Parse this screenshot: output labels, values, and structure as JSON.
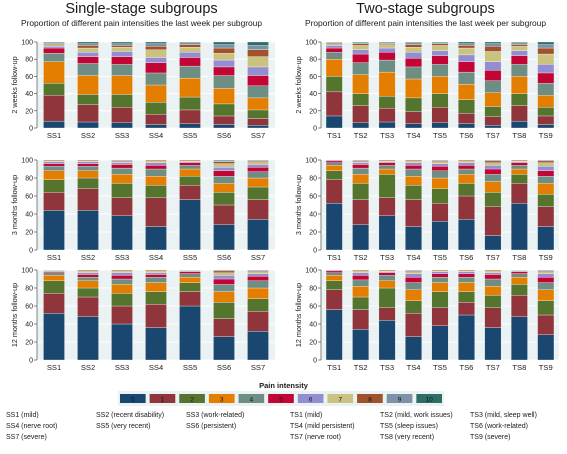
{
  "columns": [
    {
      "title": "Single-stage subgroups",
      "subtitle": "Proportion of different pain intensities the last week per subgroup"
    },
    {
      "title": "Two-stage subgroups",
      "subtitle": "Proportion of different pain intensities the last week per subgroup"
    }
  ],
  "legend": {
    "title": "Pain intensity",
    "items": [
      {
        "label": "0",
        "color": "#1a476f"
      },
      {
        "label": "1",
        "color": "#90353b"
      },
      {
        "label": "2",
        "color": "#55752f"
      },
      {
        "label": "3",
        "color": "#e37e00"
      },
      {
        "label": "4",
        "color": "#6e8e84"
      },
      {
        "label": "5",
        "color": "#c10534"
      },
      {
        "label": "6",
        "color": "#938dd2"
      },
      {
        "label": "7",
        "color": "#cac27e"
      },
      {
        "label": "8",
        "color": "#a0522d"
      },
      {
        "label": "9",
        "color": "#7b92a8"
      },
      {
        "label": "10",
        "color": "#2d6d66"
      }
    ]
  },
  "subgroup_legend": [
    "SS1 (mild)",
    "SS2 (recent disability)",
    "SS3 (work-related)",
    "TS1 (mild)",
    "TS2 (mild, work issues)",
    "TS3 (mild, sleep well)",
    "SS4 (nerve root)",
    "SS5 (very recent)",
    "SS6 (persistent)",
    "TS4 (mild persistent)",
    "TS5 (sleep issues)",
    "TS6 (work-related)",
    "SS7 (severe)",
    "TS7 (nerve root)",
    "TS8 (very recent)",
    "TS9 (severe)"
  ],
  "chart_data": [
    {
      "type": "bar",
      "stacked": true,
      "ylabel": "2 weeks follow-up",
      "ylim": [
        0,
        100
      ],
      "yticks": [
        "0",
        "20",
        "40",
        "60",
        "80",
        "100"
      ],
      "grid": true,
      "categories": [
        "SS1",
        "SS2",
        "SS3",
        "SS4",
        "SS5",
        "SS6",
        "SS7"
      ],
      "values": [
        [
          8,
          30,
          14,
          25,
          10,
          6,
          2,
          2,
          1,
          1,
          1
        ],
        [
          7,
          20,
          12,
          22,
          14,
          8,
          5,
          5,
          3,
          2,
          2
        ],
        [
          6,
          18,
          15,
          22,
          13,
          9,
          6,
          5,
          2,
          2,
          2
        ],
        [
          4,
          12,
          14,
          20,
          14,
          12,
          6,
          9,
          4,
          3,
          2
        ],
        [
          5,
          16,
          15,
          22,
          14,
          10,
          6,
          6,
          3,
          2,
          1
        ],
        [
          4,
          10,
          14,
          18,
          15,
          10,
          8,
          8,
          6,
          4,
          3
        ],
        [
          3,
          8,
          10,
          14,
          14,
          12,
          10,
          12,
          8,
          5,
          4
        ]
      ]
    },
    {
      "type": "bar",
      "stacked": true,
      "ylabel": "2 weeks follow-up",
      "ylim": [
        0,
        100
      ],
      "yticks": [
        "0",
        "20",
        "40",
        "60",
        "80",
        "100"
      ],
      "grid": true,
      "categories": [
        "TS1",
        "TS2",
        "TS3",
        "TS4",
        "TS5",
        "TS6",
        "TS7",
        "TS8",
        "TS9"
      ],
      "values": [
        [
          14,
          28,
          18,
          20,
          8,
          5,
          3,
          2,
          1,
          1,
          0
        ],
        [
          6,
          20,
          14,
          22,
          14,
          10,
          5,
          5,
          2,
          1,
          1
        ],
        [
          7,
          16,
          14,
          28,
          14,
          9,
          5,
          4,
          1,
          1,
          1
        ],
        [
          5,
          14,
          16,
          22,
          14,
          10,
          7,
          6,
          3,
          2,
          1
        ],
        [
          6,
          18,
          16,
          20,
          14,
          10,
          6,
          6,
          2,
          1,
          1
        ],
        [
          5,
          12,
          16,
          18,
          14,
          12,
          8,
          8,
          3,
          2,
          2
        ],
        [
          3,
          10,
          12,
          16,
          14,
          12,
          10,
          12,
          6,
          3,
          2
        ],
        [
          8,
          18,
          14,
          20,
          14,
          10,
          6,
          5,
          2,
          2,
          1
        ],
        [
          4,
          10,
          10,
          14,
          14,
          12,
          10,
          12,
          7,
          4,
          3
        ]
      ]
    },
    {
      "type": "bar",
      "stacked": true,
      "ylabel": "3 months follow-up",
      "ylim": [
        0,
        100
      ],
      "yticks": [
        "0",
        "20",
        "40",
        "60",
        "80",
        "100"
      ],
      "grid": true,
      "categories": [
        "SS1",
        "SS2",
        "SS3",
        "SS4",
        "SS5",
        "SS6",
        "SS7"
      ],
      "values": [
        [
          44,
          20,
          14,
          10,
          5,
          3,
          2,
          1,
          1,
          0,
          0
        ],
        [
          44,
          24,
          12,
          8,
          5,
          3,
          2,
          1,
          1,
          0,
          0
        ],
        [
          38,
          20,
          16,
          10,
          7,
          4,
          2,
          1,
          1,
          1,
          0
        ],
        [
          26,
          32,
          14,
          10,
          8,
          4,
          3,
          2,
          1,
          0,
          0
        ],
        [
          56,
          16,
          10,
          8,
          4,
          3,
          1,
          1,
          1,
          0,
          0
        ],
        [
          28,
          22,
          14,
          10,
          8,
          6,
          4,
          4,
          2,
          1,
          1
        ],
        [
          34,
          22,
          14,
          10,
          7,
          5,
          3,
          3,
          1,
          1,
          0
        ]
      ]
    },
    {
      "type": "bar",
      "stacked": true,
      "ylabel": "3 months follow-up",
      "ylim": [
        0,
        100
      ],
      "yticks": [
        "0",
        "20",
        "40",
        "60",
        "80",
        "100"
      ],
      "grid": true,
      "categories": [
        "TS1",
        "TS2",
        "TS3",
        "TS4",
        "TS5",
        "TS6",
        "TS7",
        "TS8",
        "TS9"
      ],
      "values": [
        [
          52,
          26,
          10,
          6,
          3,
          2,
          1,
          0,
          0,
          0,
          0
        ],
        [
          28,
          28,
          18,
          10,
          7,
          4,
          2,
          1,
          1,
          1,
          0
        ],
        [
          38,
          20,
          26,
          6,
          4,
          3,
          1,
          1,
          1,
          0,
          0
        ],
        [
          26,
          30,
          16,
          10,
          8,
          4,
          3,
          2,
          1,
          0,
          0
        ],
        [
          32,
          20,
          16,
          12,
          8,
          5,
          3,
          2,
          1,
          1,
          0
        ],
        [
          34,
          26,
          14,
          10,
          6,
          4,
          3,
          2,
          1,
          0,
          0
        ],
        [
          16,
          32,
          16,
          12,
          8,
          6,
          4,
          3,
          2,
          1,
          0
        ],
        [
          52,
          22,
          10,
          6,
          4,
          3,
          1,
          1,
          1,
          0,
          0
        ],
        [
          26,
          22,
          14,
          12,
          8,
          6,
          5,
          4,
          2,
          1,
          0
        ]
      ]
    },
    {
      "type": "bar",
      "stacked": true,
      "ylabel": "12 months follow-up",
      "ylim": [
        0,
        100
      ],
      "yticks": [
        "0",
        "20",
        "40",
        "60",
        "80",
        "100"
      ],
      "grid": true,
      "categories": [
        "SS1",
        "SS2",
        "SS3",
        "SS4",
        "SS5",
        "SS6",
        "SS7"
      ],
      "values": [
        [
          52,
          22,
          14,
          6,
          3,
          1,
          1,
          1,
          0,
          0,
          0
        ],
        [
          48,
          22,
          10,
          8,
          4,
          3,
          2,
          2,
          1,
          0,
          0
        ],
        [
          40,
          20,
          14,
          10,
          6,
          4,
          3,
          2,
          1,
          0,
          0
        ],
        [
          36,
          26,
          14,
          10,
          6,
          3,
          2,
          2,
          1,
          0,
          0
        ],
        [
          60,
          16,
          10,
          6,
          4,
          2,
          1,
          1,
          0,
          0,
          0
        ],
        [
          26,
          20,
          18,
          12,
          8,
          6,
          4,
          3,
          2,
          1,
          0
        ],
        [
          32,
          22,
          14,
          12,
          8,
          5,
          3,
          2,
          1,
          1,
          0
        ]
      ]
    },
    {
      "type": "bar",
      "stacked": true,
      "ylabel": "12 months follow-up",
      "ylim": [
        0,
        100
      ],
      "yticks": [
        "0",
        "20",
        "40",
        "60",
        "80",
        "100"
      ],
      "grid": true,
      "categories": [
        "TS1",
        "TS2",
        "TS3",
        "TS4",
        "TS5",
        "TS6",
        "TS7",
        "TS8",
        "TS9"
      ],
      "values": [
        [
          56,
          22,
          10,
          6,
          3,
          2,
          1,
          0,
          0,
          0,
          0
        ],
        [
          34,
          22,
          14,
          12,
          7,
          5,
          3,
          2,
          1,
          0,
          0
        ],
        [
          44,
          14,
          22,
          8,
          6,
          3,
          1,
          1,
          1,
          0,
          0
        ],
        [
          26,
          26,
          14,
          12,
          8,
          6,
          4,
          2,
          1,
          1,
          0
        ],
        [
          38,
          20,
          18,
          10,
          6,
          4,
          2,
          1,
          1,
          0,
          0
        ],
        [
          50,
          14,
          12,
          10,
          6,
          4,
          2,
          1,
          1,
          0,
          0
        ],
        [
          36,
          22,
          14,
          10,
          8,
          5,
          2,
          2,
          1,
          0,
          0
        ],
        [
          48,
          24,
          12,
          8,
          4,
          2,
          1,
          1,
          0,
          0,
          0
        ],
        [
          28,
          22,
          16,
          12,
          8,
          6,
          4,
          2,
          1,
          1,
          0
        ]
      ]
    }
  ]
}
